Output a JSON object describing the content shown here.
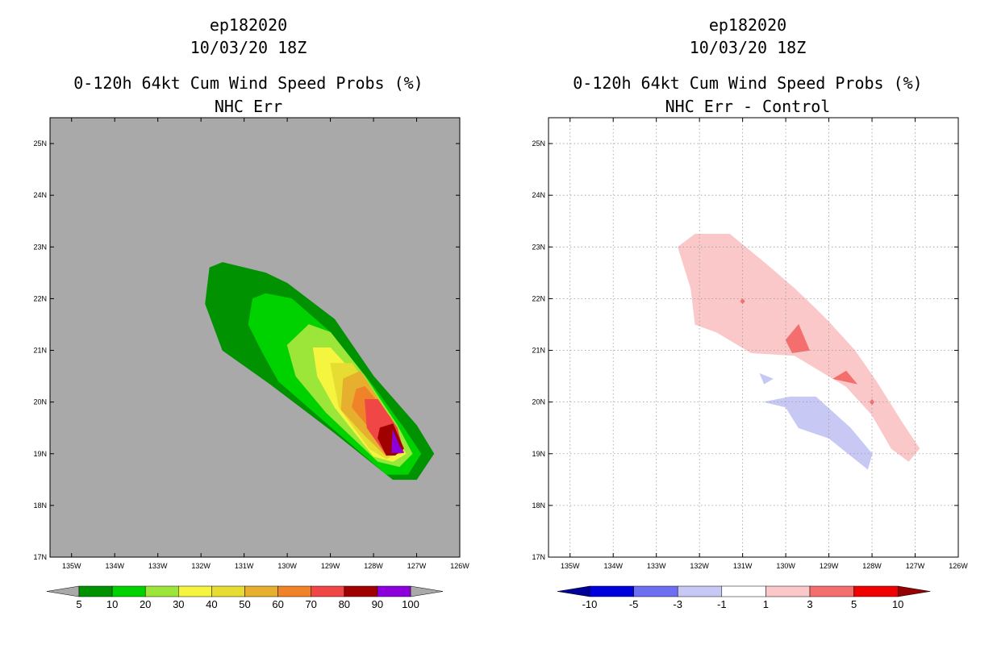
{
  "chart_data": [
    {
      "type": "contour",
      "storm_id": "ep182020",
      "datetime": "10/03/20 18Z",
      "title": "0-120h 64kt Cum Wind Speed Probs (%)",
      "subtitle": "NHC Err",
      "units": "%",
      "xlim": [
        -135.5,
        -126
      ],
      "ylim": [
        17,
        25.5
      ],
      "x_ticks": [
        {
          "value": -135,
          "label": "135W"
        },
        {
          "value": -134,
          "label": "134W"
        },
        {
          "value": -133,
          "label": "133W"
        },
        {
          "value": -132,
          "label": "132W"
        },
        {
          "value": -131,
          "label": "131W"
        },
        {
          "value": -130,
          "label": "130W"
        },
        {
          "value": -129,
          "label": "129W"
        },
        {
          "value": -128,
          "label": "128W"
        },
        {
          "value": -127,
          "label": "127W"
        },
        {
          "value": -126,
          "label": "126W"
        }
      ],
      "y_ticks": [
        {
          "value": 17,
          "label": "17N"
        },
        {
          "value": 18,
          "label": "18N"
        },
        {
          "value": 19,
          "label": "19N"
        },
        {
          "value": 20,
          "label": "20N"
        },
        {
          "value": 21,
          "label": "21N"
        },
        {
          "value": 22,
          "label": "22N"
        },
        {
          "value": 23,
          "label": "23N"
        },
        {
          "value": 24,
          "label": "24N"
        },
        {
          "value": 25,
          "label": "25N"
        }
      ],
      "background": "#a9a9a9",
      "grid": false,
      "colorbar": {
        "levels": [
          "5",
          "10",
          "20",
          "30",
          "40",
          "50",
          "60",
          "70",
          "80",
          "90",
          "100"
        ],
        "colors": [
          "#009200",
          "#00d200",
          "#9ce63a",
          "#f5f540",
          "#e6dc32",
          "#e6af2d",
          "#f08228",
          "#f04646",
          "#a00000",
          "#8c00dc"
        ],
        "under_color": "#a9a9a9",
        "over_color": "#a9a9a9"
      },
      "contours": [
        {
          "level": "5",
          "color": "#009200",
          "points": [
            [
              -131.8,
              22.6
            ],
            [
              -131.5,
              22.7
            ],
            [
              -130.5,
              22.5
            ],
            [
              -130,
              22.3
            ],
            [
              -128.9,
              21.6
            ],
            [
              -128,
              20.5
            ],
            [
              -127,
              19.55
            ],
            [
              -126.6,
              19
            ],
            [
              -127,
              18.5
            ],
            [
              -127.55,
              18.5
            ],
            [
              -128.9,
              19.4
            ],
            [
              -130.4,
              20.35
            ],
            [
              -131.5,
              21
            ],
            [
              -131.9,
              21.9
            ]
          ]
        },
        {
          "level": "10",
          "color": "#00d200",
          "points": [
            [
              -130.8,
              22
            ],
            [
              -130.5,
              22.1
            ],
            [
              -129.9,
              22
            ],
            [
              -129,
              21.35
            ],
            [
              -128,
              20.3
            ],
            [
              -127.3,
              19.5
            ],
            [
              -126.9,
              19
            ],
            [
              -127.2,
              18.6
            ],
            [
              -127.7,
              18.6
            ],
            [
              -129.1,
              19.6
            ],
            [
              -130.2,
              20.4
            ],
            [
              -130.6,
              21
            ],
            [
              -130.9,
              21.5
            ]
          ]
        },
        {
          "level": "20",
          "color": "#9ce63a",
          "points": [
            [
              -130,
              21.1
            ],
            [
              -129.5,
              21.5
            ],
            [
              -129,
              21.35
            ],
            [
              -128.2,
              20.5
            ],
            [
              -127.45,
              19.55
            ],
            [
              -127.1,
              19
            ],
            [
              -127.4,
              18.75
            ],
            [
              -127.9,
              18.85
            ],
            [
              -129.1,
              19.8
            ],
            [
              -129.8,
              20.5
            ]
          ]
        },
        {
          "level": "30",
          "color": "#f5f540",
          "points": [
            [
              -129.4,
              21.05
            ],
            [
              -129,
              21.05
            ],
            [
              -128.4,
              20.5
            ],
            [
              -127.6,
              19.5
            ],
            [
              -127.25,
              19
            ],
            [
              -127.55,
              18.85
            ],
            [
              -128.0,
              18.95
            ],
            [
              -128.9,
              19.9
            ],
            [
              -129.3,
              20.5
            ]
          ]
        },
        {
          "level": "40",
          "color": "#e6dc32",
          "points": [
            [
              -129.0,
              20.75
            ],
            [
              -128.5,
              20.75
            ],
            [
              -127.8,
              19.9
            ],
            [
              -127.35,
              19.05
            ],
            [
              -127.7,
              18.9
            ],
            [
              -128.1,
              19.1
            ],
            [
              -128.8,
              19.9
            ]
          ]
        },
        {
          "level": "50",
          "color": "#e6af2d",
          "points": [
            [
              -128.7,
              20.45
            ],
            [
              -128.3,
              20.6
            ],
            [
              -127.7,
              19.8
            ],
            [
              -127.35,
              19.05
            ],
            [
              -127.7,
              18.95
            ],
            [
              -128.2,
              19.35
            ],
            [
              -128.75,
              19.85
            ]
          ]
        },
        {
          "level": "60",
          "color": "#f08228",
          "points": [
            [
              -128.4,
              20.25
            ],
            [
              -128.2,
              20.3
            ],
            [
              -127.6,
              19.7
            ],
            [
              -127.35,
              19.05
            ],
            [
              -127.7,
              18.97
            ],
            [
              -128.1,
              19.5
            ],
            [
              -128.5,
              19.9
            ]
          ]
        },
        {
          "level": "70",
          "color": "#f04646",
          "points": [
            [
              -128.2,
              20.05
            ],
            [
              -127.9,
              20.05
            ],
            [
              -127.45,
              19.5
            ],
            [
              -127.3,
              19.02
            ],
            [
              -127.7,
              18.97
            ],
            [
              -128.15,
              19.5
            ]
          ]
        },
        {
          "level": "80",
          "color": "#a00000",
          "points": [
            [
              -127.85,
              19.5
            ],
            [
              -127.55,
              19.58
            ],
            [
              -127.3,
              19.1
            ],
            [
              -127.5,
              18.97
            ],
            [
              -127.7,
              18.97
            ],
            [
              -127.9,
              19.3
            ]
          ]
        },
        {
          "level": "90",
          "color": "#8c00dc",
          "points": [
            [
              -127.55,
              19.45
            ],
            [
              -127.4,
              19.15
            ],
            [
              -127.3,
              19.02
            ],
            [
              -127.58,
              19.02
            ]
          ]
        }
      ]
    },
    {
      "type": "contour",
      "storm_id": "ep182020",
      "datetime": "10/03/20 18Z",
      "title": "0-120h 64kt Cum Wind Speed Probs (%)",
      "subtitle": "NHC Err - Control",
      "units": "%",
      "xlim": [
        -135.5,
        -126
      ],
      "ylim": [
        17,
        25.5
      ],
      "x_ticks": [
        {
          "value": -135,
          "label": "135W"
        },
        {
          "value": -134,
          "label": "134W"
        },
        {
          "value": -133,
          "label": "133W"
        },
        {
          "value": -132,
          "label": "132W"
        },
        {
          "value": -131,
          "label": "131W"
        },
        {
          "value": -130,
          "label": "130W"
        },
        {
          "value": -129,
          "label": "129W"
        },
        {
          "value": -128,
          "label": "128W"
        },
        {
          "value": -127,
          "label": "127W"
        },
        {
          "value": -126,
          "label": "126W"
        }
      ],
      "y_ticks": [
        {
          "value": 17,
          "label": "17N"
        },
        {
          "value": 18,
          "label": "18N"
        },
        {
          "value": 19,
          "label": "19N"
        },
        {
          "value": 20,
          "label": "20N"
        },
        {
          "value": 21,
          "label": "21N"
        },
        {
          "value": 22,
          "label": "22N"
        },
        {
          "value": 23,
          "label": "23N"
        },
        {
          "value": 24,
          "label": "24N"
        },
        {
          "value": 25,
          "label": "25N"
        }
      ],
      "background": "#ffffff",
      "grid": true,
      "colorbar": {
        "levels": [
          "-10",
          "-5",
          "-3",
          "-1",
          "1",
          "3",
          "5",
          "10"
        ],
        "colors": [
          "#0000dc",
          "#6e6ef0",
          "#c8c8f5",
          "#ffffff",
          "#fac8c8",
          "#f56e6e",
          "#f00000"
        ],
        "under_color": "#000096",
        "over_color": "#960000"
      },
      "contours": [
        {
          "level": "1",
          "color": "#fac8c8",
          "points": [
            [
              -132.5,
              23
            ],
            [
              -132.1,
              23.25
            ],
            [
              -131.3,
              23.25
            ],
            [
              -130.5,
              22.7
            ],
            [
              -129.8,
              22.2
            ],
            [
              -129.3,
              21.8
            ],
            [
              -129.0,
              21.55
            ],
            [
              -128.4,
              21.0
            ],
            [
              -127.9,
              20.4
            ],
            [
              -127.3,
              19.6
            ],
            [
              -126.9,
              19.1
            ],
            [
              -127.15,
              18.85
            ],
            [
              -127.55,
              19.1
            ],
            [
              -128.0,
              19.75
            ],
            [
              -128.6,
              20.3
            ],
            [
              -129.8,
              20.9
            ],
            [
              -130.8,
              20.95
            ],
            [
              -131.6,
              21.35
            ],
            [
              -132.1,
              21.5
            ],
            [
              -132.2,
              22.2
            ]
          ]
        },
        {
          "level": "3",
          "color": "#f56e6e",
          "points": [
            [
              -129.7,
              21.5
            ],
            [
              -129.45,
              21.0
            ],
            [
              -129.85,
              20.95
            ],
            [
              -130.0,
              21.2
            ]
          ]
        },
        {
          "level": "3",
          "color": "#f56e6e",
          "points": [
            [
              -128.6,
              20.6
            ],
            [
              -128.35,
              20.35
            ],
            [
              -128.9,
              20.45
            ]
          ]
        },
        {
          "level": "3",
          "color": "#f56e6e",
          "points": [
            [
              -131.0,
              22.0
            ],
            [
              -130.95,
              21.95
            ],
            [
              -131.0,
              21.9
            ],
            [
              -131.05,
              21.95
            ]
          ]
        },
        {
          "level": "3",
          "color": "#f56e6e",
          "points": [
            [
              -128.0,
              20.05
            ],
            [
              -127.95,
              20.0
            ],
            [
              -128.0,
              19.95
            ],
            [
              -128.05,
              20.0
            ]
          ]
        },
        {
          "level": "-1",
          "color": "#c8c8f5",
          "points": [
            [
              -130.5,
              20.0
            ],
            [
              -129.9,
              20.1
            ],
            [
              -129.3,
              20.1
            ],
            [
              -128.5,
              19.5
            ],
            [
              -128.0,
              19.0
            ],
            [
              -128.1,
              18.7
            ],
            [
              -129.0,
              19.3
            ],
            [
              -129.7,
              19.5
            ],
            [
              -130.0,
              19.9
            ]
          ]
        },
        {
          "level": "-1",
          "color": "#c8c8f5",
          "points": [
            [
              -130.6,
              20.55
            ],
            [
              -130.3,
              20.45
            ],
            [
              -130.5,
              20.35
            ]
          ]
        }
      ]
    }
  ]
}
